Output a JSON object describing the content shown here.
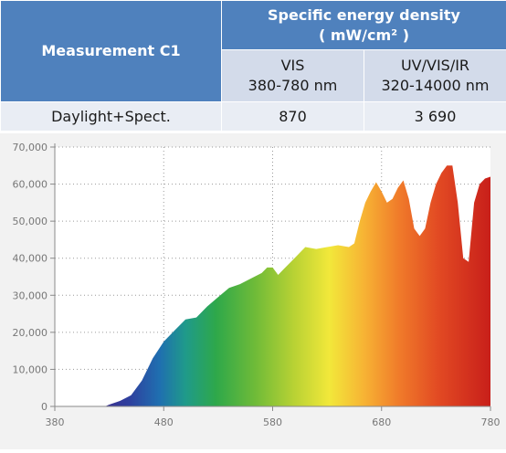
{
  "table": {
    "row_header": "Measurement C1",
    "group_header_line1": "Specific energy density",
    "group_header_line2": "( mW/cm² )",
    "columns": [
      {
        "line1": "VIS",
        "line2": "380-780 nm"
      },
      {
        "line1": "UV/VIS/IR",
        "line2": "320-14000 nm"
      }
    ],
    "rows": [
      {
        "label": "Daylight+Spect.",
        "values": [
          "870",
          "3 690"
        ]
      }
    ]
  },
  "chart_data": {
    "type": "area",
    "title": "",
    "xlabel": "",
    "ylabel": "",
    "xlim": [
      380,
      780
    ],
    "ylim": [
      0,
      70000
    ],
    "x_ticks": [
      "380",
      "480",
      "580",
      "680",
      "780"
    ],
    "y_ticks": [
      "0",
      "10,000",
      "20,000",
      "30,000",
      "40,000",
      "50,000",
      "60,000",
      "70,000"
    ],
    "grid": true,
    "fill": "visible-spectrum gradient",
    "series": [
      {
        "x": [
          426,
          430,
          440,
          450,
          460,
          470,
          480,
          490,
          500,
          510,
          520,
          530,
          540,
          550,
          560,
          570,
          575,
          580,
          585,
          590,
          600,
          610,
          620,
          630,
          640,
          650,
          655,
          660,
          665,
          670,
          675,
          680,
          685,
          690,
          695,
          700,
          705,
          710,
          715,
          720,
          725,
          730,
          735,
          740,
          745,
          750,
          755,
          760,
          765,
          770,
          775,
          780
        ],
        "y": [
          0,
          500,
          1500,
          3000,
          7000,
          13000,
          17500,
          20500,
          23500,
          24000,
          27000,
          29500,
          32000,
          33000,
          34500,
          36000,
          37500,
          37500,
          35500,
          37000,
          40000,
          43000,
          42500,
          43000,
          43500,
          43000,
          44000,
          50000,
          55000,
          58000,
          60500,
          58000,
          55000,
          56000,
          59000,
          61000,
          56000,
          48000,
          46000,
          48000,
          55000,
          60000,
          63000,
          65000,
          65000,
          55000,
          40000,
          39000,
          55000,
          60000,
          61500,
          62000
        ]
      }
    ]
  }
}
